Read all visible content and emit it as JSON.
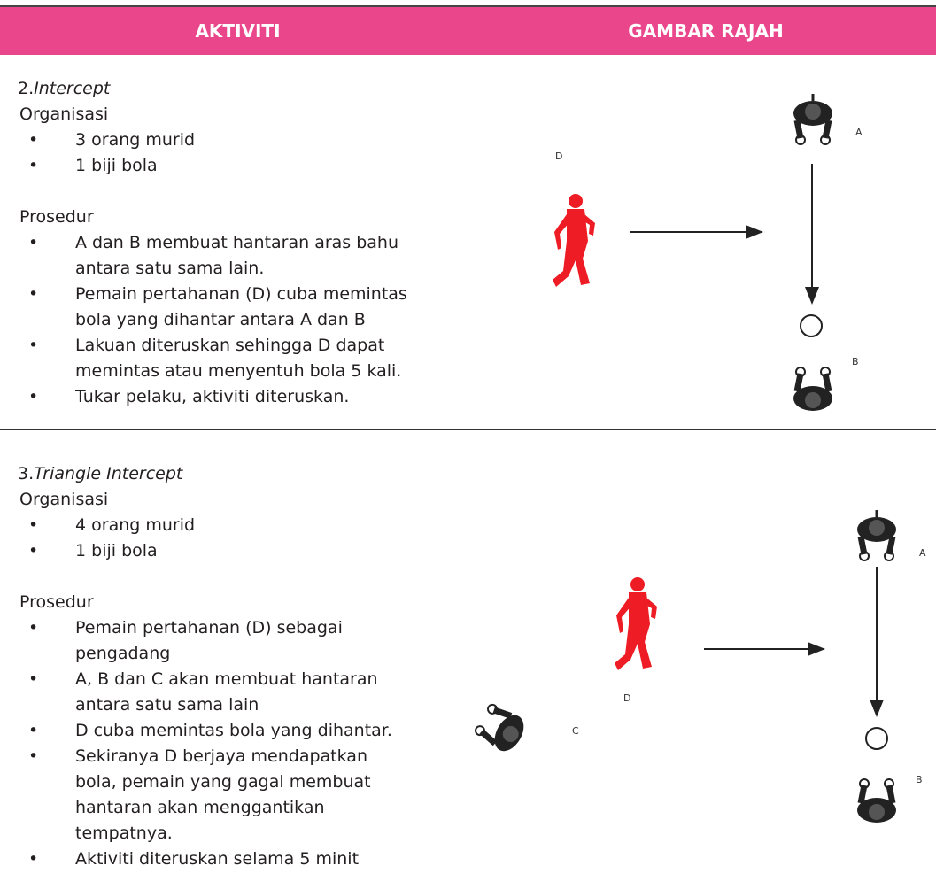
{
  "table": {
    "headers": [
      "AKTIVITI",
      "GAMBAR RAJAH"
    ],
    "rows": [
      {
        "number": "2.",
        "title": "Intercept",
        "organisasi_label": "Organisasi",
        "organisasi": [
          "3 orang murid",
          "1 biji bola"
        ],
        "prosedur_label": "Prosedur",
        "prosedur": [
          "A dan B membuat hantaran aras bahu antara satu sama lain.",
          "Pemain pertahanan (D) cuba memintas bola yang dihantar antara A dan B",
          "Lakuan diteruskan sehingga D dapat memintas atau menyentuh bola 5 kali.",
          "Tukar pelaku, aktiviti diteruskan."
        ],
        "diagram_labels": [
          "D",
          "A",
          "B"
        ]
      },
      {
        "number": "3.",
        "title": "Triangle Intercept",
        "organisasi_label": "Organisasi",
        "organisasi": [
          "4 orang murid",
          "1 biji bola"
        ],
        "prosedur_label": "Prosedur",
        "prosedur": [
          "Pemain pertahanan (D) sebagai pengadang",
          "A, B dan C akan membuat hantaran antara satu sama lain",
          "D cuba memintas bola yang dihantar.",
          "Sekiranya D berjaya mendapatkan bola, pemain yang gagal membuat hantaran akan menggantikan tempatnya.",
          "Aktiviti diteruskan selama 5 minit"
        ],
        "diagram_labels": [
          "D",
          "A",
          "B",
          "C"
        ]
      }
    ]
  }
}
